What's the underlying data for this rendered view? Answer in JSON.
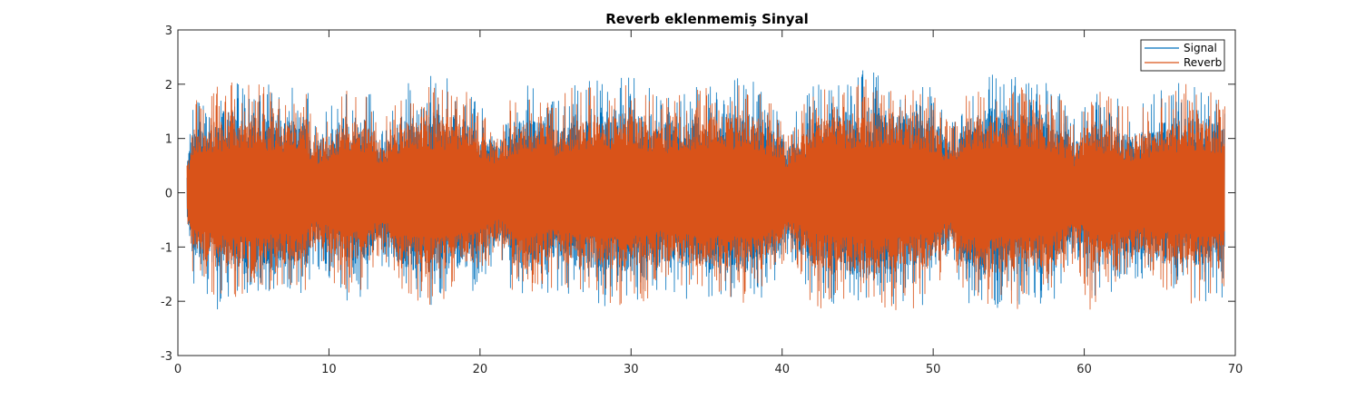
{
  "chart_data": {
    "type": "line",
    "title": "Reverb eklenmemiş Sinyal",
    "xlabel": "",
    "ylabel": "",
    "xlim": [
      0,
      70
    ],
    "ylim": [
      -3,
      3
    ],
    "xticks": [
      0,
      10,
      20,
      30,
      40,
      50,
      60,
      70
    ],
    "yticks": [
      -3,
      -2,
      -1,
      0,
      1,
      2,
      3
    ],
    "xtick_labels": [
      "0",
      "10",
      "20",
      "30",
      "40",
      "50",
      "60",
      "70"
    ],
    "ytick_labels": [
      "-3",
      "-2",
      "-1",
      "0",
      "1",
      "2",
      "3"
    ],
    "grid": false,
    "legend_position": "top-right",
    "x_start": 0.6,
    "x_end": 69.3,
    "series": [
      {
        "name": "Signal",
        "color": "#0072BD",
        "envelope": {
          "x": [
            0.6,
            1,
            3,
            5,
            7,
            8.5,
            9,
            11,
            12.7,
            13.3,
            15,
            17,
            19,
            21.3,
            22,
            24,
            25,
            26,
            28,
            30,
            32,
            34,
            36,
            38,
            40,
            40.3,
            42,
            44,
            46,
            48,
            50,
            51.2,
            52,
            54,
            56,
            58,
            59,
            59.3,
            61,
            63,
            64,
            66,
            68,
            69.3
          ],
          "upper": [
            0.6,
            1.8,
            2.0,
            2.3,
            2.0,
            2.0,
            1.3,
            2.0,
            1.9,
            1.3,
            2.0,
            2.2,
            2.0,
            1.2,
            1.9,
            2.1,
            1.7,
            2.1,
            2.1,
            2.2,
            1.9,
            2.0,
            2.2,
            2.1,
            1.6,
            1.2,
            2.0,
            2.2,
            2.3,
            2.1,
            2.0,
            1.3,
            2.0,
            2.4,
            2.1,
            2.0,
            1.6,
            1.4,
            2.0,
            1.6,
            1.7,
            2.1,
            2.0,
            1.9
          ],
          "lower": [
            -0.6,
            -1.8,
            -2.3,
            -1.9,
            -1.8,
            -1.9,
            -1.3,
            -2.0,
            -1.9,
            -1.3,
            -2.0,
            -2.1,
            -2.0,
            -1.2,
            -1.9,
            -1.9,
            -1.8,
            -2.0,
            -2.1,
            -2.1,
            -1.9,
            -2.0,
            -2.0,
            -2.2,
            -1.5,
            -1.2,
            -2.3,
            -2.1,
            -2.1,
            -2.2,
            -2.0,
            -1.3,
            -2.0,
            -2.2,
            -2.1,
            -2.0,
            -1.5,
            -1.4,
            -2.1,
            -1.6,
            -1.6,
            -2.0,
            -2.1,
            -2.0
          ],
          "core": [
            0.5,
            1.2,
            1.4,
            1.5,
            1.4,
            1.4,
            0.9,
            1.4,
            1.3,
            0.9,
            1.4,
            1.5,
            1.4,
            0.9,
            1.3,
            1.4,
            1.2,
            1.4,
            1.5,
            1.5,
            1.3,
            1.4,
            1.5,
            1.5,
            1.1,
            0.8,
            1.4,
            1.5,
            1.6,
            1.5,
            1.4,
            0.9,
            1.4,
            1.6,
            1.5,
            1.4,
            1.1,
            0.9,
            1.4,
            1.1,
            1.2,
            1.4,
            1.4,
            1.3
          ]
        }
      },
      {
        "name": "Reverb",
        "color": "#D95319",
        "envelope": {
          "x": [
            0.6,
            1,
            3,
            5,
            7,
            8.5,
            9,
            11,
            12.7,
            13.3,
            15,
            17,
            19,
            21.3,
            22,
            24,
            25,
            26,
            28,
            30,
            32,
            34,
            36,
            38,
            40,
            40.3,
            42,
            44,
            46,
            48,
            50,
            51.2,
            52,
            54,
            56,
            58,
            59,
            59.3,
            60.5,
            61,
            63,
            64,
            66,
            67.5,
            68,
            69.3
          ],
          "upper": [
            0.5,
            1.7,
            2.1,
            2.0,
            2.0,
            1.9,
            1.2,
            1.9,
            1.8,
            1.2,
            1.9,
            2.0,
            1.9,
            1.1,
            1.8,
            1.9,
            1.6,
            2.0,
            2.0,
            2.0,
            1.8,
            1.9,
            2.0,
            2.0,
            1.5,
            1.1,
            1.9,
            2.1,
            2.1,
            2.0,
            1.9,
            1.2,
            1.9,
            2.0,
            2.0,
            1.9,
            1.5,
            1.3,
            1.9,
            1.9,
            1.6,
            1.6,
            1.9,
            2.2,
            1.9,
            1.8
          ],
          "lower": [
            -0.5,
            -1.7,
            -2.0,
            -1.8,
            -1.8,
            -1.8,
            -1.2,
            -1.9,
            -1.8,
            -1.2,
            -1.9,
            -2.2,
            -2.0,
            -1.1,
            -1.8,
            -1.9,
            -1.7,
            -1.9,
            -2.0,
            -2.3,
            -1.8,
            -1.9,
            -1.9,
            -2.1,
            -1.4,
            -1.1,
            -2.2,
            -2.0,
            -2.0,
            -2.3,
            -1.9,
            -1.2,
            -1.9,
            -2.1,
            -2.2,
            -1.9,
            -1.4,
            -1.3,
            -2.5,
            -2.0,
            -1.5,
            -1.5,
            -1.9,
            -2.1,
            -2.0,
            -1.9
          ],
          "core": [
            0.5,
            1.2,
            1.35,
            1.45,
            1.35,
            1.35,
            0.85,
            1.35,
            1.25,
            0.85,
            1.35,
            1.45,
            1.35,
            0.85,
            1.25,
            1.35,
            1.15,
            1.35,
            1.45,
            1.45,
            1.25,
            1.35,
            1.45,
            1.45,
            1.05,
            0.75,
            1.35,
            1.45,
            1.5,
            1.45,
            1.35,
            0.85,
            1.35,
            1.5,
            1.45,
            1.35,
            1.05,
            0.85,
            1.35,
            1.35,
            1.05,
            1.15,
            1.35,
            1.4,
            1.35,
            1.25
          ]
        }
      }
    ]
  }
}
